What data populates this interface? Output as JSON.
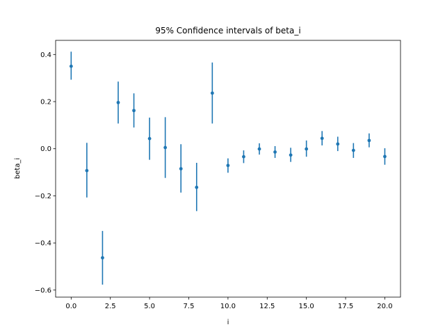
{
  "chart_data": {
    "type": "scatter",
    "title": "95% Confidence intervals of beta_i",
    "xlabel": "i",
    "ylabel": "beta_i",
    "xlim": [
      -0.99,
      21.0
    ],
    "ylim": [
      -0.63,
      0.46
    ],
    "xticks": [
      0.0,
      2.5,
      5.0,
      7.5,
      10.0,
      12.5,
      15.0,
      17.5,
      20.0
    ],
    "xtick_labels": [
      "0.0",
      "2.5",
      "5.0",
      "7.5",
      "10.0",
      "12.5",
      "15.0",
      "17.5",
      "20.0"
    ],
    "yticks": [
      -0.6,
      -0.4,
      -0.2,
      0.0,
      0.2,
      0.4
    ],
    "ytick_labels": [
      "−0.6",
      "−0.4",
      "−0.2",
      "0.0",
      "0.2",
      "0.4"
    ],
    "grid": false,
    "color": "#1f77b4",
    "series": [
      {
        "x": [
          0,
          1,
          2,
          3,
          4,
          5,
          6,
          7,
          8,
          9,
          10,
          11,
          12,
          13,
          14,
          15,
          16,
          17,
          18,
          19,
          20
        ],
        "y": [
          0.35,
          -0.093,
          -0.463,
          0.196,
          0.162,
          0.043,
          0.005,
          -0.085,
          -0.164,
          0.236,
          -0.071,
          -0.034,
          -0.001,
          -0.014,
          -0.027,
          -0.001,
          0.044,
          0.02,
          -0.007,
          0.035,
          -0.033
        ],
        "lower": [
          0.293,
          -0.207,
          -0.577,
          0.107,
          0.09,
          -0.047,
          -0.124,
          -0.186,
          -0.265,
          0.107,
          -0.102,
          -0.061,
          -0.025,
          -0.039,
          -0.056,
          -0.034,
          0.014,
          -0.01,
          -0.039,
          0.006,
          -0.068
        ],
        "upper": [
          0.412,
          0.025,
          -0.349,
          0.285,
          0.235,
          0.132,
          0.134,
          0.019,
          -0.06,
          0.366,
          -0.041,
          -0.007,
          0.023,
          0.011,
          0.004,
          0.035,
          0.075,
          0.051,
          0.024,
          0.065,
          0.002
        ]
      }
    ]
  }
}
